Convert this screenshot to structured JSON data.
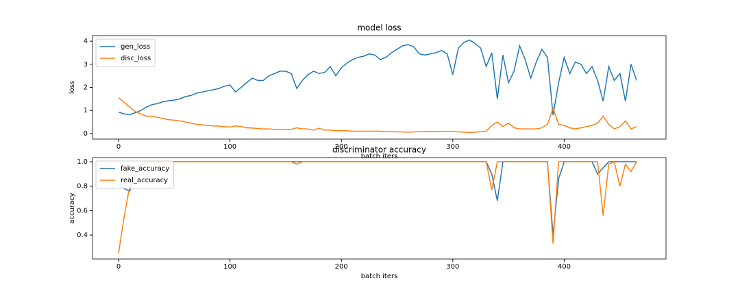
{
  "chart_data": [
    {
      "type": "line",
      "title": "model loss",
      "xlabel": "batch iters",
      "ylabel": "loss",
      "x": [
        0,
        5,
        10,
        15,
        20,
        25,
        30,
        35,
        40,
        45,
        50,
        55,
        60,
        65,
        70,
        75,
        80,
        85,
        90,
        95,
        100,
        105,
        110,
        115,
        120,
        125,
        130,
        135,
        140,
        145,
        150,
        155,
        160,
        165,
        170,
        175,
        180,
        185,
        190,
        195,
        200,
        205,
        210,
        215,
        220,
        225,
        230,
        235,
        240,
        245,
        250,
        255,
        260,
        265,
        270,
        275,
        280,
        285,
        290,
        295,
        300,
        305,
        310,
        315,
        320,
        325,
        330,
        335,
        340,
        345,
        350,
        355,
        360,
        365,
        370,
        375,
        380,
        385,
        390,
        395,
        400,
        405,
        410,
        415,
        420,
        425,
        430,
        435,
        440,
        445,
        450,
        455,
        460,
        465
      ],
      "series": [
        {
          "name": "gen_loss",
          "color": "#1f77b4",
          "values": [
            0.93,
            0.85,
            0.82,
            0.9,
            1.0,
            1.15,
            1.25,
            1.3,
            1.38,
            1.42,
            1.45,
            1.5,
            1.6,
            1.65,
            1.75,
            1.8,
            1.85,
            1.9,
            1.95,
            2.05,
            2.1,
            1.8,
            2.0,
            2.2,
            2.4,
            2.3,
            2.3,
            2.5,
            2.6,
            2.7,
            2.7,
            2.6,
            1.95,
            2.3,
            2.55,
            2.7,
            2.6,
            2.65,
            2.9,
            2.5,
            2.85,
            3.05,
            3.2,
            3.3,
            3.35,
            3.45,
            3.4,
            3.2,
            3.3,
            3.5,
            3.65,
            3.8,
            3.85,
            3.75,
            3.45,
            3.4,
            3.45,
            3.5,
            3.6,
            3.45,
            2.55,
            3.7,
            3.95,
            4.05,
            3.9,
            3.7,
            2.9,
            3.5,
            1.5,
            3.4,
            2.2,
            2.7,
            3.8,
            3.2,
            2.4,
            3.1,
            3.65,
            3.3,
            0.8,
            2.2,
            3.3,
            2.6,
            3.1,
            3.0,
            2.6,
            2.9,
            2.3,
            1.4,
            2.9,
            2.3,
            2.6,
            1.4,
            3.0,
            2.3
          ]
        },
        {
          "name": "disc_loss",
          "color": "#ff7f0e",
          "values": [
            1.55,
            1.35,
            1.15,
            0.95,
            0.85,
            0.75,
            0.75,
            0.7,
            0.65,
            0.6,
            0.58,
            0.55,
            0.5,
            0.45,
            0.4,
            0.38,
            0.35,
            0.33,
            0.32,
            0.3,
            0.28,
            0.33,
            0.3,
            0.25,
            0.24,
            0.22,
            0.2,
            0.2,
            0.18,
            0.17,
            0.17,
            0.18,
            0.25,
            0.2,
            0.2,
            0.15,
            0.23,
            0.15,
            0.15,
            0.12,
            0.13,
            0.12,
            0.1,
            0.1,
            0.1,
            0.1,
            0.1,
            0.1,
            0.08,
            0.08,
            0.07,
            0.07,
            0.06,
            0.07,
            0.08,
            0.09,
            0.09,
            0.09,
            0.09,
            0.08,
            0.1,
            0.07,
            0.06,
            0.05,
            0.06,
            0.08,
            0.1,
            0.35,
            0.5,
            0.3,
            0.45,
            0.25,
            0.2,
            0.2,
            0.2,
            0.2,
            0.25,
            0.4,
            1.1,
            0.4,
            0.35,
            0.25,
            0.2,
            0.25,
            0.3,
            0.35,
            0.45,
            0.75,
            0.4,
            0.2,
            0.3,
            0.55,
            0.2,
            0.3
          ]
        }
      ],
      "xlim": [
        -23.4,
        491.4
      ],
      "xticks": [
        0,
        100,
        200,
        300,
        400
      ],
      "ylim": [
        -0.24,
        4.24
      ],
      "yticks": [
        0,
        1,
        2,
        3,
        4
      ],
      "legend": "upper left"
    },
    {
      "type": "line",
      "title": "discriminator accuracy",
      "xlabel": "batch iters",
      "ylabel": "accuracy",
      "x": [
        0,
        5,
        10,
        15,
        20,
        25,
        30,
        35,
        40,
        45,
        50,
        55,
        60,
        65,
        70,
        75,
        80,
        85,
        90,
        95,
        100,
        105,
        110,
        115,
        120,
        125,
        130,
        135,
        140,
        145,
        150,
        155,
        160,
        165,
        170,
        175,
        180,
        185,
        190,
        195,
        200,
        205,
        210,
        215,
        220,
        225,
        230,
        235,
        240,
        245,
        250,
        255,
        260,
        265,
        270,
        275,
        280,
        285,
        290,
        295,
        300,
        305,
        310,
        315,
        320,
        325,
        330,
        335,
        340,
        345,
        350,
        355,
        360,
        365,
        370,
        375,
        380,
        385,
        390,
        395,
        400,
        405,
        410,
        415,
        420,
        425,
        430,
        435,
        440,
        445,
        450,
        455,
        460,
        465
      ],
      "series": [
        {
          "name": "fake_accuracy",
          "color": "#1f77b4",
          "values": [
            0.82,
            0.78,
            0.76,
            0.9,
            0.97,
            1,
            1,
            1,
            1,
            1,
            1,
            1,
            1,
            1,
            1,
            1,
            1,
            1,
            1,
            1,
            1,
            1,
            1,
            1,
            1,
            1,
            1,
            1,
            1,
            1,
            1,
            1,
            1,
            1,
            1,
            1,
            1,
            1,
            1,
            1,
            1,
            1,
            1,
            1,
            1,
            1,
            1,
            1,
            1,
            1,
            1,
            1,
            1,
            1,
            1,
            1,
            1,
            1,
            1,
            1,
            1,
            1,
            1,
            1,
            1,
            1,
            1,
            0.9,
            0.68,
            1,
            1,
            1,
            1,
            1,
            1,
            1,
            1,
            1,
            0.4,
            0.86,
            1,
            1,
            1,
            1,
            1,
            1,
            0.9,
            0.95,
            1,
            1,
            1,
            1,
            1,
            1
          ]
        },
        {
          "name": "real_accuracy",
          "color": "#ff7f0e",
          "values": [
            0.25,
            0.55,
            0.8,
            0.9,
            0.98,
            1,
            1,
            1,
            1,
            1,
            1,
            1,
            1,
            1,
            1,
            1,
            1,
            1,
            1,
            1,
            1,
            1,
            1,
            1,
            1,
            1,
            1,
            1,
            1,
            1,
            1,
            1,
            0.98,
            1,
            1,
            1,
            1,
            1,
            1,
            1,
            1,
            1,
            1,
            1,
            1,
            1,
            1,
            1,
            1,
            1,
            1,
            1,
            1,
            1,
            1,
            1,
            1,
            1,
            1,
            1,
            1,
            1,
            1,
            1,
            1,
            1,
            1,
            0.77,
            1,
            1,
            1,
            1,
            1,
            1,
            1,
            1,
            1,
            1,
            0.33,
            1,
            1,
            1,
            1,
            1,
            1,
            1,
            1,
            0.56,
            0.98,
            1,
            0.8,
            0.98,
            0.92,
            1
          ]
        }
      ],
      "xlim": [
        -23.4,
        491.4
      ],
      "xticks": [
        0,
        100,
        200,
        300,
        400
      ],
      "ylim": [
        0.204,
        1.034
      ],
      "yticks": [
        0.4,
        0.6,
        0.8,
        {
          "value": 1,
          "label": "1.0"
        }
      ],
      "legend": "upper left"
    }
  ]
}
